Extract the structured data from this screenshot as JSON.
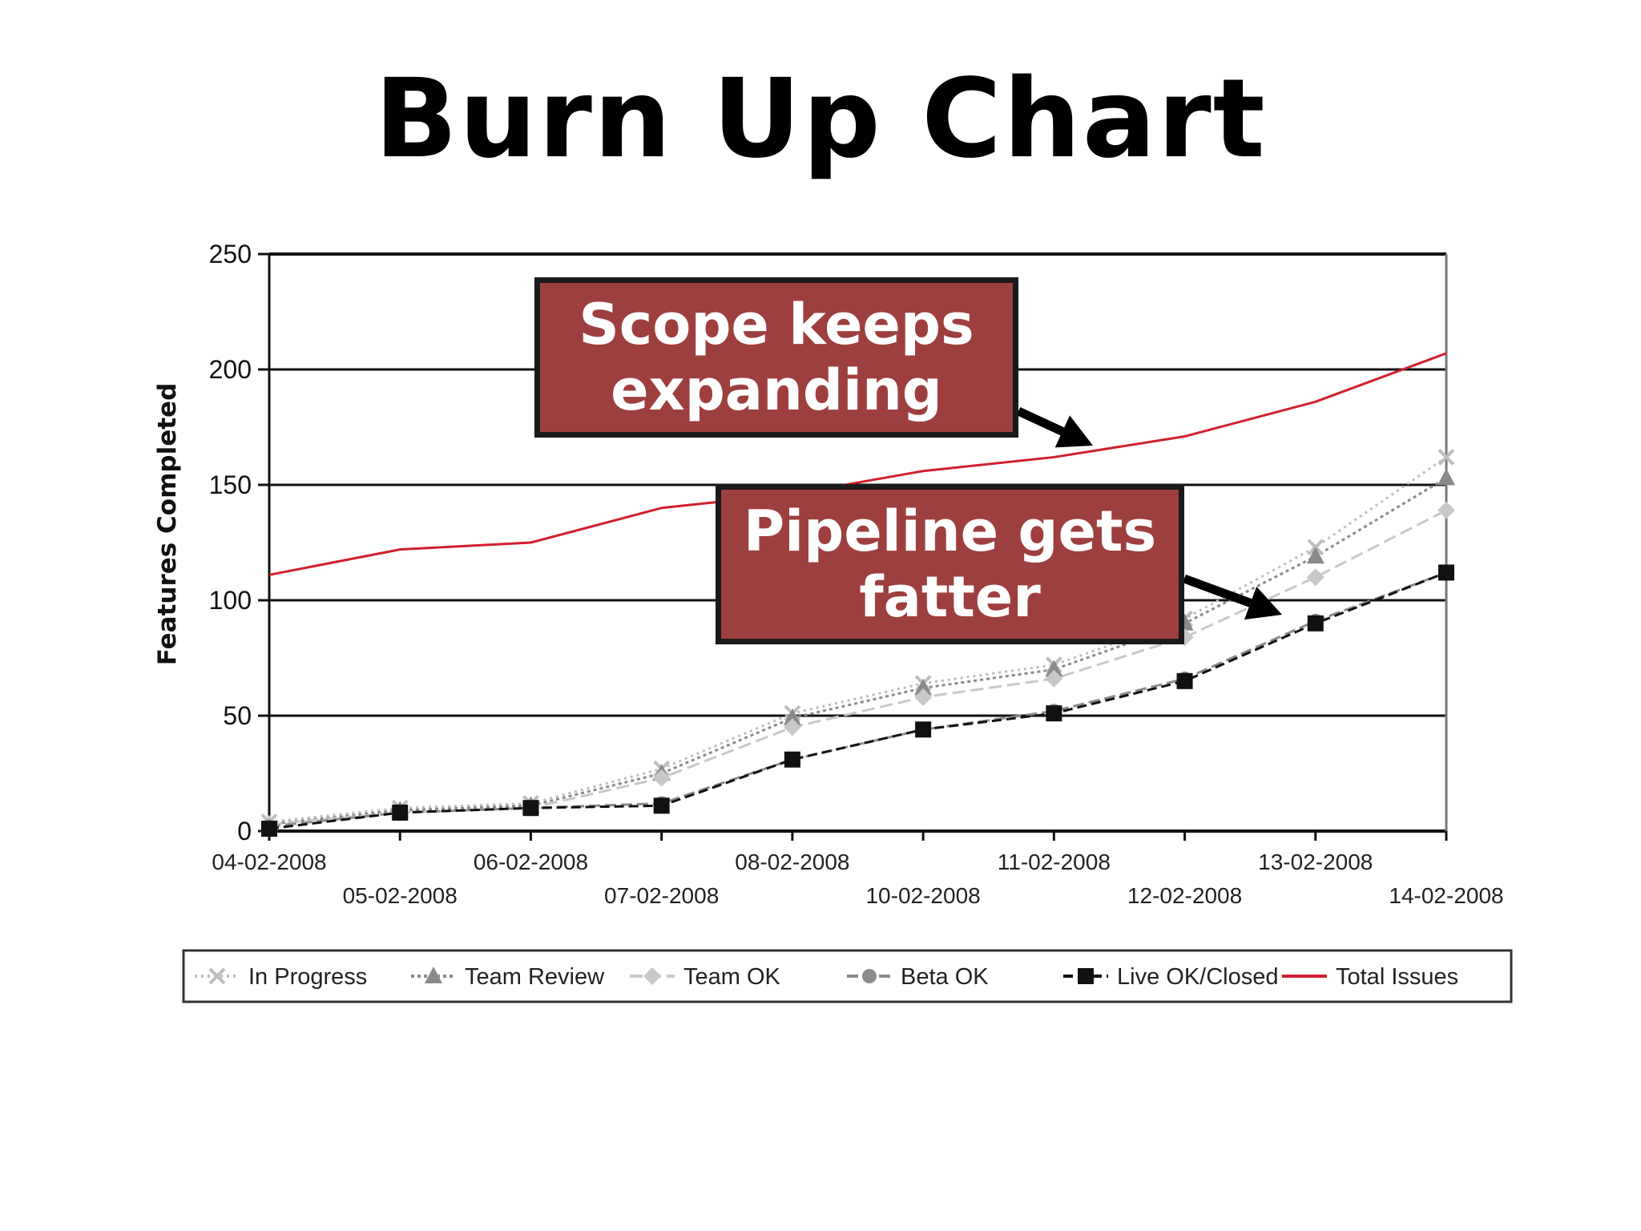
{
  "title": "Burn Up Chart",
  "callouts": {
    "scope": "Scope keeps expanding",
    "pipeline": "Pipeline gets fatter"
  },
  "chart_data": {
    "type": "line",
    "title": "",
    "xlabel": "",
    "ylabel": "Features Completed",
    "ylim": [
      0,
      250
    ],
    "yticks": [
      0,
      50,
      100,
      150,
      200,
      250
    ],
    "grid": true,
    "legend_position": "bottom",
    "categories": [
      "04-02-2008",
      "05-02-2008",
      "06-02-2008",
      "07-02-2008",
      "08-02-2008",
      "10-02-2008",
      "11-02-2008",
      "12-02-2008",
      "13-02-2008",
      "14-02-2008"
    ],
    "series": [
      {
        "name": "In Progress",
        "values": [
          4,
          10,
          12,
          27,
          51,
          64,
          72,
          92,
          123,
          162
        ],
        "color": "#bdbdbd",
        "dash": "3,5",
        "marker": "cross",
        "width": 3
      },
      {
        "name": "Team Review",
        "values": [
          3,
          9,
          11,
          25,
          49,
          62,
          70,
          90,
          119,
          153
        ],
        "color": "#8a8a8a",
        "dash": "4,4",
        "marker": "triangle",
        "width": 3
      },
      {
        "name": "Team OK",
        "values": [
          3,
          8,
          10,
          23,
          45,
          58,
          66,
          84,
          110,
          139
        ],
        "color": "#c8c8c8",
        "dash": "16,7",
        "marker": "diamond",
        "width": 3
      },
      {
        "name": "Beta OK",
        "values": [
          2,
          8,
          10,
          12,
          31,
          44,
          52,
          66,
          91,
          112
        ],
        "color": "#8c8c8c",
        "dash": "14,6",
        "marker": "circle",
        "width": 3
      },
      {
        "name": "Live OK/Closed",
        "values": [
          1,
          8,
          10,
          11,
          31,
          44,
          51,
          65,
          90,
          112
        ],
        "color": "#111111",
        "dash": "12,6",
        "marker": "square",
        "width": 3
      },
      {
        "name": "Total Issues",
        "values": [
          111,
          122,
          125,
          140,
          146,
          156,
          162,
          171,
          186,
          207
        ],
        "color": "#d0202e",
        "dash": "",
        "marker": "none",
        "width": 3
      }
    ]
  }
}
